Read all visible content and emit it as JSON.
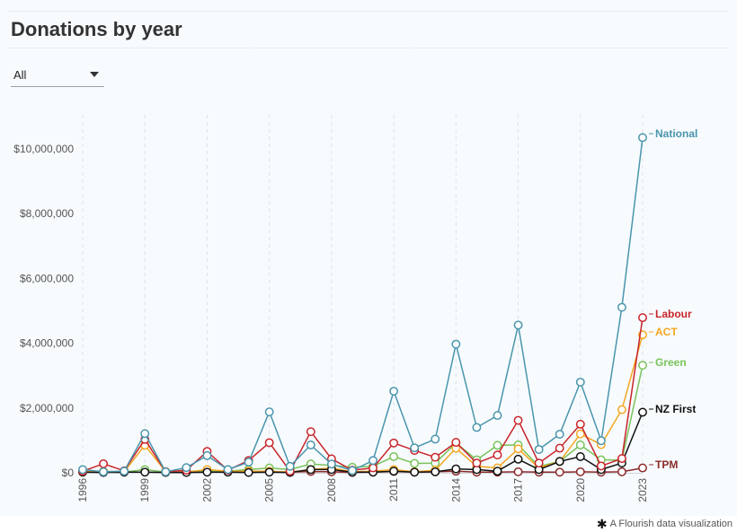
{
  "title": "Donations by year",
  "filter": {
    "selected": "All"
  },
  "credit": "A Flourish data visualization",
  "colors": {
    "National": "#4a95ad",
    "Labour": "#c8252c",
    "ACT": "#f5a623",
    "Green": "#79c25a",
    "NZ First": "#111111",
    "TPM": "#8b2a2a"
  },
  "chart_data": {
    "type": "line",
    "x": [
      1996,
      1997,
      1998,
      1999,
      2000,
      2001,
      2002,
      2003,
      2004,
      2005,
      2006,
      2007,
      2008,
      2009,
      2010,
      2011,
      2012,
      2013,
      2014,
      2015,
      2016,
      2017,
      2018,
      2019,
      2020,
      2021,
      2022,
      2023
    ],
    "x_ticks": [
      "1996",
      "1999",
      "2002",
      "2005",
      "2008",
      "2011",
      "2014",
      "2017",
      "2020",
      "2023"
    ],
    "y_ticks": [
      "$0",
      "$2,000,000",
      "$4,000,000",
      "$6,000,000",
      "$8,000,000",
      "$10,000,000"
    ],
    "ylim": [
      0,
      10800000
    ],
    "series": [
      {
        "name": "TPM",
        "values": [
          null,
          null,
          null,
          null,
          null,
          null,
          null,
          null,
          null,
          30000,
          20000,
          40000,
          30000,
          10000,
          20000,
          40000,
          20000,
          30000,
          50000,
          20000,
          20000,
          30000,
          20000,
          20000,
          30000,
          20000,
          30000,
          150000
        ]
      },
      {
        "name": "Green",
        "values": [
          20000,
          30000,
          20000,
          100000,
          20000,
          30000,
          60000,
          50000,
          100000,
          150000,
          100000,
          270000,
          230000,
          170000,
          200000,
          500000,
          290000,
          300000,
          920000,
          400000,
          850000,
          860000,
          200000,
          350000,
          860000,
          400000,
          390000,
          3320000
        ]
      },
      {
        "name": "ACT",
        "values": [
          30000,
          50000,
          30000,
          850000,
          40000,
          20000,
          100000,
          50000,
          50000,
          50000,
          20000,
          100000,
          150000,
          30000,
          50000,
          100000,
          30000,
          80000,
          760000,
          200000,
          150000,
          740000,
          150000,
          350000,
          1200000,
          870000,
          1950000,
          4260000
        ]
      },
      {
        "name": "NZ First",
        "values": [
          20000,
          10000,
          20000,
          20000,
          10000,
          10000,
          20000,
          20000,
          10000,
          20000,
          10000,
          100000,
          100000,
          20000,
          20000,
          50000,
          20000,
          30000,
          120000,
          100000,
          50000,
          420000,
          100000,
          350000,
          500000,
          100000,
          300000,
          1870000
        ]
      },
      {
        "name": "Labour",
        "values": [
          50000,
          280000,
          60000,
          1030000,
          30000,
          80000,
          660000,
          80000,
          380000,
          930000,
          50000,
          1270000,
          430000,
          80000,
          150000,
          920000,
          690000,
          480000,
          940000,
          300000,
          550000,
          1620000,
          300000,
          760000,
          1500000,
          210000,
          440000,
          4790000
        ]
      },
      {
        "name": "National",
        "values": [
          100000,
          30000,
          50000,
          1210000,
          30000,
          160000,
          530000,
          100000,
          330000,
          1880000,
          200000,
          860000,
          270000,
          70000,
          380000,
          2520000,
          770000,
          1040000,
          3970000,
          1400000,
          1770000,
          4560000,
          720000,
          1190000,
          2800000,
          990000,
          5110000,
          10350000
        ]
      }
    ]
  }
}
